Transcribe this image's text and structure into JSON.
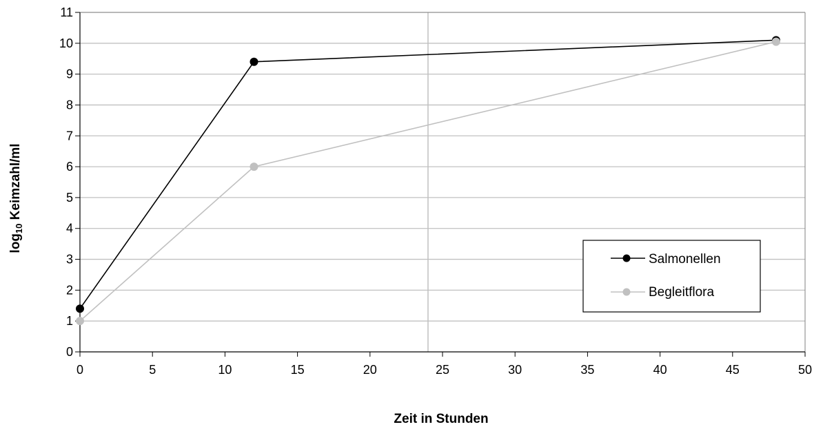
{
  "chart_data": {
    "type": "line",
    "xlabel": "Zeit in Stunden",
    "ylabel_main": "log",
    "ylabel_sub": "10",
    "ylabel_rest": " Keimzahl/ml",
    "xlim": [
      0,
      50
    ],
    "ylim": [
      0,
      11
    ],
    "x_ticks": [
      0,
      5,
      10,
      15,
      20,
      25,
      30,
      35,
      40,
      45,
      50
    ],
    "y_ticks": [
      0,
      1,
      2,
      3,
      4,
      5,
      6,
      7,
      8,
      9,
      10,
      11
    ],
    "grid": "horizontal",
    "reference_line_x": 24,
    "legend_position": "lower-right",
    "series": [
      {
        "name": "Salmonellen",
        "color": "#000000",
        "x": [
          0,
          12,
          48
        ],
        "y": [
          1.4,
          9.4,
          10.1
        ]
      },
      {
        "name": "Begleitflora",
        "color": "#c0c0c0",
        "x": [
          0,
          12,
          48
        ],
        "y": [
          1.0,
          6.0,
          10.05
        ]
      }
    ]
  }
}
